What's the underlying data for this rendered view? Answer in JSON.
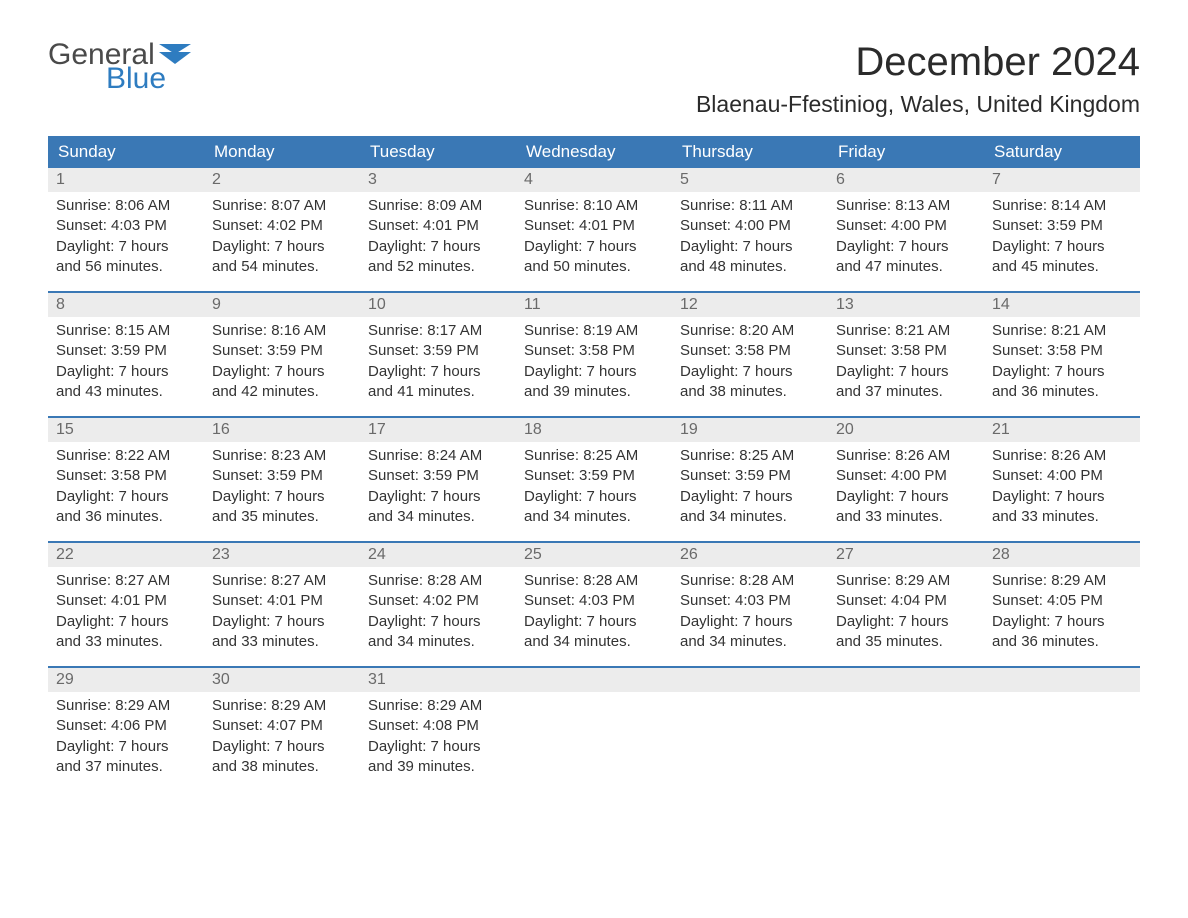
{
  "logo": {
    "word1": "General",
    "word2": "Blue",
    "word1_color": "#4a4a4a",
    "word2_color": "#2e7cc0",
    "flag_color": "#2e7cc0"
  },
  "title": "December 2024",
  "location": "Blaenau-Ffestiniog, Wales, United Kingdom",
  "colors": {
    "header_bg": "#3a78b5",
    "header_text": "#ffffff",
    "date_row_bg": "#ececec",
    "date_text": "#6a6a6a",
    "cell_text": "#333333",
    "week_border": "#3a78b5",
    "page_bg": "#ffffff"
  },
  "typography": {
    "title_fontsize": 40,
    "location_fontsize": 23,
    "day_header_fontsize": 17,
    "date_fontsize": 16,
    "cell_fontsize": 15,
    "logo_fontsize": 30,
    "font_family": "Arial"
  },
  "day_headers": [
    "Sunday",
    "Monday",
    "Tuesday",
    "Wednesday",
    "Thursday",
    "Friday",
    "Saturday"
  ],
  "weeks": [
    {
      "dates": [
        "1",
        "2",
        "3",
        "4",
        "5",
        "6",
        "7"
      ],
      "cells": [
        {
          "sunrise": "Sunrise: 8:06 AM",
          "sunset": "Sunset: 4:03 PM",
          "d1": "Daylight: 7 hours",
          "d2": "and 56 minutes."
        },
        {
          "sunrise": "Sunrise: 8:07 AM",
          "sunset": "Sunset: 4:02 PM",
          "d1": "Daylight: 7 hours",
          "d2": "and 54 minutes."
        },
        {
          "sunrise": "Sunrise: 8:09 AM",
          "sunset": "Sunset: 4:01 PM",
          "d1": "Daylight: 7 hours",
          "d2": "and 52 minutes."
        },
        {
          "sunrise": "Sunrise: 8:10 AM",
          "sunset": "Sunset: 4:01 PM",
          "d1": "Daylight: 7 hours",
          "d2": "and 50 minutes."
        },
        {
          "sunrise": "Sunrise: 8:11 AM",
          "sunset": "Sunset: 4:00 PM",
          "d1": "Daylight: 7 hours",
          "d2": "and 48 minutes."
        },
        {
          "sunrise": "Sunrise: 8:13 AM",
          "sunset": "Sunset: 4:00 PM",
          "d1": "Daylight: 7 hours",
          "d2": "and 47 minutes."
        },
        {
          "sunrise": "Sunrise: 8:14 AM",
          "sunset": "Sunset: 3:59 PM",
          "d1": "Daylight: 7 hours",
          "d2": "and 45 minutes."
        }
      ]
    },
    {
      "dates": [
        "8",
        "9",
        "10",
        "11",
        "12",
        "13",
        "14"
      ],
      "cells": [
        {
          "sunrise": "Sunrise: 8:15 AM",
          "sunset": "Sunset: 3:59 PM",
          "d1": "Daylight: 7 hours",
          "d2": "and 43 minutes."
        },
        {
          "sunrise": "Sunrise: 8:16 AM",
          "sunset": "Sunset: 3:59 PM",
          "d1": "Daylight: 7 hours",
          "d2": "and 42 minutes."
        },
        {
          "sunrise": "Sunrise: 8:17 AM",
          "sunset": "Sunset: 3:59 PM",
          "d1": "Daylight: 7 hours",
          "d2": "and 41 minutes."
        },
        {
          "sunrise": "Sunrise: 8:19 AM",
          "sunset": "Sunset: 3:58 PM",
          "d1": "Daylight: 7 hours",
          "d2": "and 39 minutes."
        },
        {
          "sunrise": "Sunrise: 8:20 AM",
          "sunset": "Sunset: 3:58 PM",
          "d1": "Daylight: 7 hours",
          "d2": "and 38 minutes."
        },
        {
          "sunrise": "Sunrise: 8:21 AM",
          "sunset": "Sunset: 3:58 PM",
          "d1": "Daylight: 7 hours",
          "d2": "and 37 minutes."
        },
        {
          "sunrise": "Sunrise: 8:21 AM",
          "sunset": "Sunset: 3:58 PM",
          "d1": "Daylight: 7 hours",
          "d2": "and 36 minutes."
        }
      ]
    },
    {
      "dates": [
        "15",
        "16",
        "17",
        "18",
        "19",
        "20",
        "21"
      ],
      "cells": [
        {
          "sunrise": "Sunrise: 8:22 AM",
          "sunset": "Sunset: 3:58 PM",
          "d1": "Daylight: 7 hours",
          "d2": "and 36 minutes."
        },
        {
          "sunrise": "Sunrise: 8:23 AM",
          "sunset": "Sunset: 3:59 PM",
          "d1": "Daylight: 7 hours",
          "d2": "and 35 minutes."
        },
        {
          "sunrise": "Sunrise: 8:24 AM",
          "sunset": "Sunset: 3:59 PM",
          "d1": "Daylight: 7 hours",
          "d2": "and 34 minutes."
        },
        {
          "sunrise": "Sunrise: 8:25 AM",
          "sunset": "Sunset: 3:59 PM",
          "d1": "Daylight: 7 hours",
          "d2": "and 34 minutes."
        },
        {
          "sunrise": "Sunrise: 8:25 AM",
          "sunset": "Sunset: 3:59 PM",
          "d1": "Daylight: 7 hours",
          "d2": "and 34 minutes."
        },
        {
          "sunrise": "Sunrise: 8:26 AM",
          "sunset": "Sunset: 4:00 PM",
          "d1": "Daylight: 7 hours",
          "d2": "and 33 minutes."
        },
        {
          "sunrise": "Sunrise: 8:26 AM",
          "sunset": "Sunset: 4:00 PM",
          "d1": "Daylight: 7 hours",
          "d2": "and 33 minutes."
        }
      ]
    },
    {
      "dates": [
        "22",
        "23",
        "24",
        "25",
        "26",
        "27",
        "28"
      ],
      "cells": [
        {
          "sunrise": "Sunrise: 8:27 AM",
          "sunset": "Sunset: 4:01 PM",
          "d1": "Daylight: 7 hours",
          "d2": "and 33 minutes."
        },
        {
          "sunrise": "Sunrise: 8:27 AM",
          "sunset": "Sunset: 4:01 PM",
          "d1": "Daylight: 7 hours",
          "d2": "and 33 minutes."
        },
        {
          "sunrise": "Sunrise: 8:28 AM",
          "sunset": "Sunset: 4:02 PM",
          "d1": "Daylight: 7 hours",
          "d2": "and 34 minutes."
        },
        {
          "sunrise": "Sunrise: 8:28 AM",
          "sunset": "Sunset: 4:03 PM",
          "d1": "Daylight: 7 hours",
          "d2": "and 34 minutes."
        },
        {
          "sunrise": "Sunrise: 8:28 AM",
          "sunset": "Sunset: 4:03 PM",
          "d1": "Daylight: 7 hours",
          "d2": "and 34 minutes."
        },
        {
          "sunrise": "Sunrise: 8:29 AM",
          "sunset": "Sunset: 4:04 PM",
          "d1": "Daylight: 7 hours",
          "d2": "and 35 minutes."
        },
        {
          "sunrise": "Sunrise: 8:29 AM",
          "sunset": "Sunset: 4:05 PM",
          "d1": "Daylight: 7 hours",
          "d2": "and 36 minutes."
        }
      ]
    },
    {
      "dates": [
        "29",
        "30",
        "31",
        "",
        "",
        "",
        ""
      ],
      "cells": [
        {
          "sunrise": "Sunrise: 8:29 AM",
          "sunset": "Sunset: 4:06 PM",
          "d1": "Daylight: 7 hours",
          "d2": "and 37 minutes."
        },
        {
          "sunrise": "Sunrise: 8:29 AM",
          "sunset": "Sunset: 4:07 PM",
          "d1": "Daylight: 7 hours",
          "d2": "and 38 minutes."
        },
        {
          "sunrise": "Sunrise: 8:29 AM",
          "sunset": "Sunset: 4:08 PM",
          "d1": "Daylight: 7 hours",
          "d2": "and 39 minutes."
        },
        null,
        null,
        null,
        null
      ]
    }
  ]
}
